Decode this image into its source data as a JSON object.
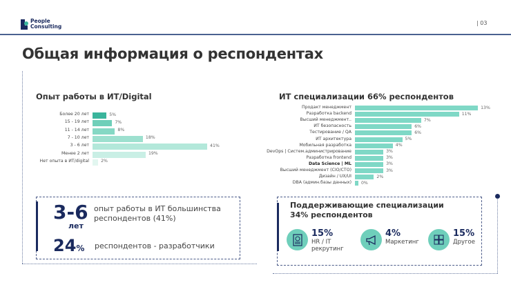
{
  "header": {
    "logo_line1": "People",
    "logo_line2": "Consulting",
    "page_number": "| 03"
  },
  "title": "Общая информация о респондентах",
  "colors": {
    "navy": "#1a2a5e",
    "teal": "#6fcfbb",
    "bar_right": "#7fd8c6"
  },
  "chart_data": [
    {
      "type": "bar",
      "orientation": "horizontal",
      "title": "Опыт работы в ИТ/Digital",
      "categories": [
        "Более 20 лет",
        "15 - 19 лет",
        "11 - 14 лет",
        "7 - 10 лет",
        "3 - 6 лет",
        "Менее 2 лет",
        "Нет опыта в ИТ/digital"
      ],
      "values": [
        5,
        7,
        8,
        18,
        41,
        19,
        2
      ],
      "labels": [
        "5%",
        "7%",
        "8%",
        "18%",
        "41%",
        "19%",
        "2%"
      ],
      "colors": [
        "#3ab59c",
        "#6fcfb9",
        "#85d8c4",
        "#9de0cf",
        "#b3e8da",
        "#c9efe5",
        "#e2f6f0"
      ],
      "grid": false
    },
    {
      "type": "bar",
      "orientation": "horizontal",
      "title": "ИТ специализации 66% респондентов",
      "categories": [
        "Продакт менеджмент",
        "Разработка backend",
        "Высший менеджмент..",
        "ИТ безопасность",
        "Тестирование / QA",
        "ИТ архитектура",
        "Мобильная разработка",
        "DevOps | Систем.администрирование",
        "Разработка frontend",
        "Data Science | ML",
        "Высший менеджмент (CIO/CTO)",
        "Дизайн / UX/UI",
        "DBA (админ.базы данных)"
      ],
      "values": [
        13,
        11,
        7,
        6,
        6,
        5,
        4,
        3,
        3,
        3,
        3,
        2,
        0
      ],
      "labels": [
        "13%",
        "11%",
        "7%",
        "6%",
        "6%",
        "5%",
        "4%",
        "3%",
        "3%",
        "3%",
        "3%",
        "2%",
        "0%"
      ],
      "color": "#7fd8c6",
      "grid": false
    }
  ],
  "left_box": {
    "big1": "3-6",
    "big1_unit": "лет",
    "text1": "опыт работы в ИТ большинства респондентов (41%)",
    "big2": "24",
    "big2_unit": "%",
    "text2": "респондентов - разработчики"
  },
  "right_box": {
    "title": "Поддерживающие специализации 34% респондентов",
    "stats": [
      {
        "icon": "resume-icon",
        "percent": "15%",
        "label": "HR / IT рекрутинг"
      },
      {
        "icon": "megaphone-icon",
        "percent": "4%",
        "label": "Маркетинг"
      },
      {
        "icon": "puzzle-icon",
        "percent": "15%",
        "label": "Другое"
      }
    ]
  }
}
